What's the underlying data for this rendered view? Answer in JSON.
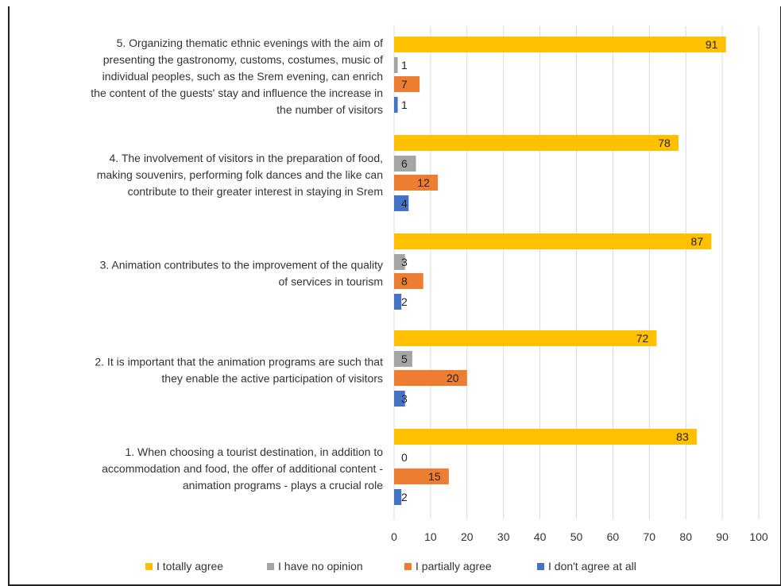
{
  "chart_data": {
    "type": "bar",
    "orientation": "horizontal",
    "title": "",
    "xlabel": "",
    "ylabel": "",
    "xlim": [
      0,
      100
    ],
    "x_ticks": [
      0,
      10,
      20,
      30,
      40,
      50,
      60,
      70,
      80,
      90,
      100
    ],
    "grid": true,
    "legend_position": "bottom",
    "categories": [
      {
        "id": "q5",
        "lines": [
          "5. Organizing thematic ethnic evenings with the aim of",
          "presenting the gastronomy, customs, costumes, music of",
          "individual peoples, such as the Srem evening, can enrich",
          "the content of the guests' stay and influence the increase in",
          "the number of visitors"
        ]
      },
      {
        "id": "q4",
        "lines": [
          "4. The involvement of visitors in the preparation of food,",
          "making souvenirs, performing folk dances and the like can",
          "contribute to their greater interest in staying in Srem"
        ]
      },
      {
        "id": "q3",
        "lines": [
          "3. Animation contributes to the improvement of the quality",
          "of services in tourism"
        ]
      },
      {
        "id": "q2",
        "lines": [
          "2. It is important that the animation programs are such that",
          "they enable the active participation of visitors"
        ]
      },
      {
        "id": "q1",
        "lines": [
          "1. When choosing a tourist destination, in addition to",
          "accommodation and food, the offer of additional content -",
          "animation programs - plays a crucial role"
        ]
      }
    ],
    "series": [
      {
        "name": "I totally agree",
        "color": "#FFC000",
        "values": [
          91,
          78,
          87,
          72,
          83
        ]
      },
      {
        "name": "I have no opinion",
        "color": "#A5A5A5",
        "values": [
          1,
          6,
          3,
          5,
          0
        ]
      },
      {
        "name": "I partially agree",
        "color": "#ED7D31",
        "values": [
          7,
          12,
          8,
          20,
          15
        ]
      },
      {
        "name": "I don't agree at all",
        "color": "#4472C4",
        "values": [
          1,
          4,
          2,
          3,
          2
        ]
      }
    ]
  }
}
